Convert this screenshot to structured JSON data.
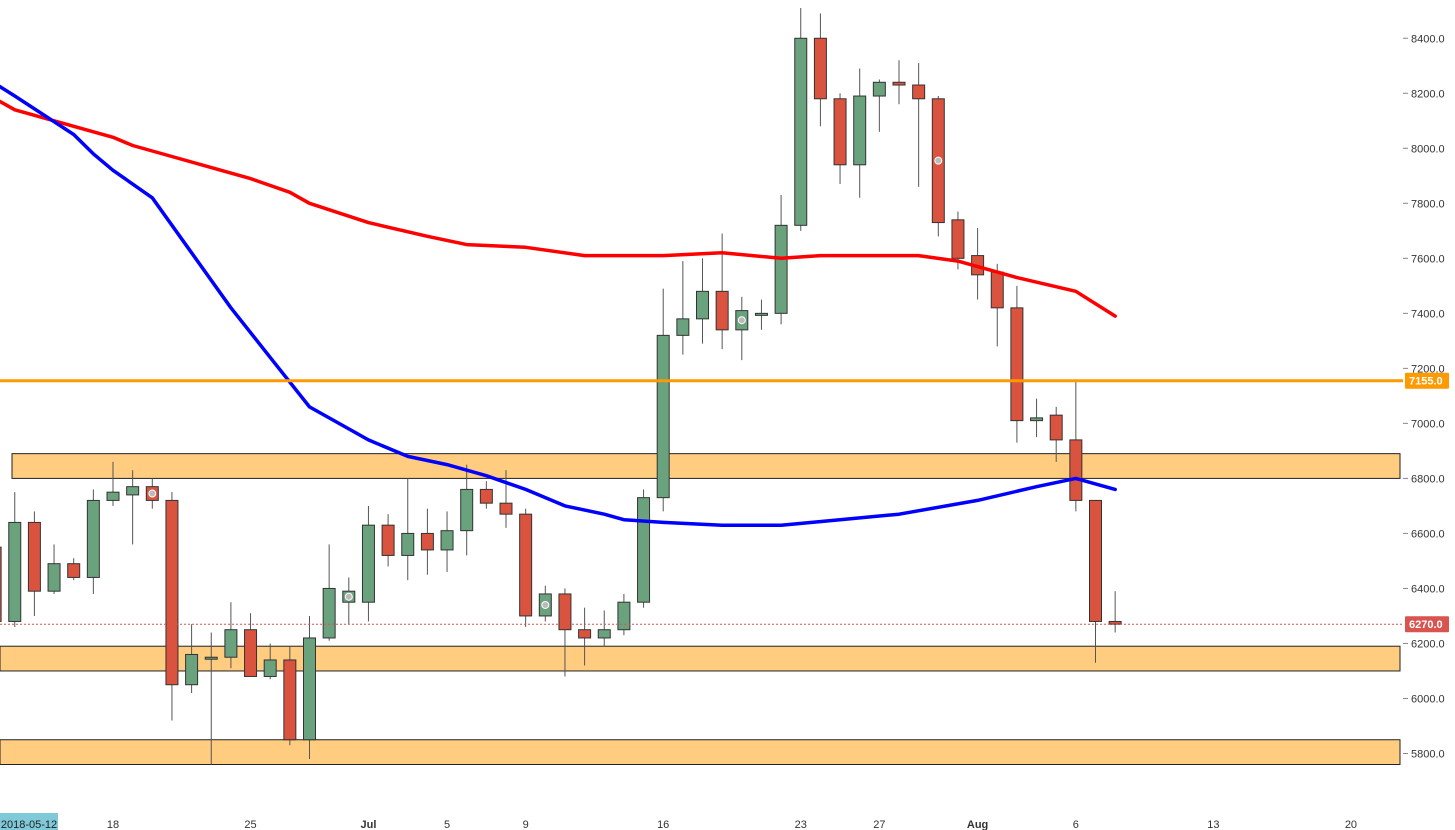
{
  "chart_data": {
    "type": "candlestick",
    "ylim": [
      5740,
      8510
    ],
    "y_ticks": [
      "5800.0",
      "6000.0",
      "6200.0",
      "6400.0",
      "6600.0",
      "6800.0",
      "7000.0",
      "7200.0",
      "7400.0",
      "7600.0",
      "7800.0",
      "8000.0",
      "8200.0",
      "8400.0"
    ],
    "x_tick_labels": [
      {
        "date": "2018-06-18",
        "label": "18"
      },
      {
        "date": "2018-06-25",
        "label": "25"
      },
      {
        "date": "2018-07-01",
        "label": "Jul"
      },
      {
        "date": "2018-07-05",
        "label": "5"
      },
      {
        "date": "2018-07-09",
        "label": "9"
      },
      {
        "date": "2018-07-16",
        "label": "16"
      },
      {
        "date": "2018-07-23",
        "label": "23"
      },
      {
        "date": "2018-07-27",
        "label": "27"
      },
      {
        "date": "2018-08-01",
        "label": "Aug"
      },
      {
        "date": "2018-08-06",
        "label": "6"
      },
      {
        "date": "2018-08-13",
        "label": "13"
      },
      {
        "date": "2018-08-20",
        "label": "20"
      }
    ],
    "date_label": "2018-05-12",
    "candles": [
      {
        "date": "2018-06-12",
        "o": 6550,
        "h": 6620,
        "l": 6110,
        "c": 6280
      },
      {
        "date": "2018-06-13",
        "o": 6280,
        "h": 6750,
        "l": 6260,
        "c": 6640
      },
      {
        "date": "2018-06-14",
        "o": 6640,
        "h": 6680,
        "l": 6300,
        "c": 6390
      },
      {
        "date": "2018-06-15",
        "o": 6390,
        "h": 6560,
        "l": 6380,
        "c": 6490
      },
      {
        "date": "2018-06-16",
        "o": 6490,
        "h": 6510,
        "l": 6430,
        "c": 6440
      },
      {
        "date": "2018-06-17",
        "o": 6440,
        "h": 6760,
        "l": 6380,
        "c": 6720
      },
      {
        "date": "2018-06-18",
        "o": 6720,
        "h": 6860,
        "l": 6700,
        "c": 6750
      },
      {
        "date": "2018-06-19",
        "o": 6740,
        "h": 6830,
        "l": 6560,
        "c": 6770
      },
      {
        "date": "2018-06-20",
        "o": 6770,
        "h": 6800,
        "l": 6690,
        "c": 6720,
        "marker": true
      },
      {
        "date": "2018-06-21",
        "o": 6720,
        "h": 6750,
        "l": 5920,
        "c": 6050
      },
      {
        "date": "2018-06-22",
        "o": 6050,
        "h": 6270,
        "l": 6020,
        "c": 6160
      },
      {
        "date": "2018-06-23",
        "o": 6150,
        "h": 6240,
        "l": 5760,
        "c": 6150
      },
      {
        "date": "2018-06-24",
        "o": 6150,
        "h": 6350,
        "l": 6110,
        "c": 6250
      },
      {
        "date": "2018-06-25",
        "o": 6250,
        "h": 6310,
        "l": 6080,
        "c": 6080
      },
      {
        "date": "2018-06-26",
        "o": 6080,
        "h": 6200,
        "l": 6070,
        "c": 6140
      },
      {
        "date": "2018-06-27",
        "o": 6140,
        "h": 6190,
        "l": 5830,
        "c": 5850
      },
      {
        "date": "2018-06-28",
        "o": 5850,
        "h": 6300,
        "l": 5780,
        "c": 6220
      },
      {
        "date": "2018-06-29",
        "o": 6220,
        "h": 6560,
        "l": 6210,
        "c": 6400
      },
      {
        "date": "2018-06-30",
        "o": 6350,
        "h": 6440,
        "l": 6270,
        "c": 6390,
        "marker": true
      },
      {
        "date": "2018-07-01",
        "o": 6350,
        "h": 6700,
        "l": 6280,
        "c": 6630
      },
      {
        "date": "2018-07-02",
        "o": 6630,
        "h": 6670,
        "l": 6480,
        "c": 6520
      },
      {
        "date": "2018-07-03",
        "o": 6520,
        "h": 6800,
        "l": 6430,
        "c": 6600
      },
      {
        "date": "2018-07-04",
        "o": 6600,
        "h": 6690,
        "l": 6450,
        "c": 6540
      },
      {
        "date": "2018-07-05",
        "o": 6540,
        "h": 6680,
        "l": 6460,
        "c": 6610
      },
      {
        "date": "2018-07-06",
        "o": 6610,
        "h": 6850,
        "l": 6520,
        "c": 6760
      },
      {
        "date": "2018-07-07",
        "o": 6760,
        "h": 6790,
        "l": 6690,
        "c": 6710
      },
      {
        "date": "2018-07-08",
        "o": 6710,
        "h": 6830,
        "l": 6620,
        "c": 6670
      },
      {
        "date": "2018-07-09",
        "o": 6670,
        "h": 6690,
        "l": 6260,
        "c": 6300
      },
      {
        "date": "2018-07-10",
        "o": 6300,
        "h": 6410,
        "l": 6280,
        "c": 6380,
        "marker": true
      },
      {
        "date": "2018-07-11",
        "o": 6380,
        "h": 6400,
        "l": 6080,
        "c": 6250
      },
      {
        "date": "2018-07-12",
        "o": 6250,
        "h": 6330,
        "l": 6120,
        "c": 6220
      },
      {
        "date": "2018-07-13",
        "o": 6220,
        "h": 6320,
        "l": 6190,
        "c": 6250
      },
      {
        "date": "2018-07-14",
        "o": 6250,
        "h": 6380,
        "l": 6230,
        "c": 6350
      },
      {
        "date": "2018-07-15",
        "o": 6350,
        "h": 6760,
        "l": 6330,
        "c": 6730
      },
      {
        "date": "2018-07-16",
        "o": 6730,
        "h": 7490,
        "l": 6680,
        "c": 7320
      },
      {
        "date": "2018-07-17",
        "o": 7320,
        "h": 7590,
        "l": 7250,
        "c": 7380
      },
      {
        "date": "2018-07-18",
        "o": 7380,
        "h": 7600,
        "l": 7290,
        "c": 7480
      },
      {
        "date": "2018-07-19",
        "o": 7480,
        "h": 7690,
        "l": 7270,
        "c": 7340
      },
      {
        "date": "2018-07-20",
        "o": 7340,
        "h": 7460,
        "l": 7230,
        "c": 7410,
        "marker": true
      },
      {
        "date": "2018-07-21",
        "o": 7400,
        "h": 7450,
        "l": 7340,
        "c": 7400
      },
      {
        "date": "2018-07-22",
        "o": 7400,
        "h": 7830,
        "l": 7360,
        "c": 7720
      },
      {
        "date": "2018-07-23",
        "o": 7720,
        "h": 8510,
        "l": 7700,
        "c": 8400
      },
      {
        "date": "2018-07-24",
        "o": 8400,
        "h": 8490,
        "l": 8080,
        "c": 8180
      },
      {
        "date": "2018-07-25",
        "o": 8180,
        "h": 8200,
        "l": 7870,
        "c": 7940
      },
      {
        "date": "2018-07-26",
        "o": 7940,
        "h": 8290,
        "l": 7820,
        "c": 8190
      },
      {
        "date": "2018-07-27",
        "o": 8190,
        "h": 8250,
        "l": 8060,
        "c": 8240
      },
      {
        "date": "2018-07-28",
        "o": 8240,
        "h": 8320,
        "l": 8160,
        "c": 8230
      },
      {
        "date": "2018-07-29",
        "o": 8230,
        "h": 8310,
        "l": 7860,
        "c": 8180
      },
      {
        "date": "2018-07-30",
        "o": 8180,
        "h": 8190,
        "l": 7680,
        "c": 7730,
        "marker": true
      },
      {
        "date": "2018-07-31",
        "o": 7740,
        "h": 7770,
        "l": 7560,
        "c": 7600
      },
      {
        "date": "2018-08-01",
        "o": 7610,
        "h": 7710,
        "l": 7450,
        "c": 7540
      },
      {
        "date": "2018-08-02",
        "o": 7550,
        "h": 7580,
        "l": 7280,
        "c": 7420
      },
      {
        "date": "2018-08-03",
        "o": 7420,
        "h": 7500,
        "l": 6930,
        "c": 7010
      },
      {
        "date": "2018-08-04",
        "o": 7010,
        "h": 7090,
        "l": 6950,
        "c": 7020
      },
      {
        "date": "2018-08-05",
        "o": 7030,
        "h": 7060,
        "l": 6860,
        "c": 6940
      },
      {
        "date": "2018-08-06",
        "o": 6940,
        "h": 7160,
        "l": 6680,
        "c": 6720
      },
      {
        "date": "2018-08-07",
        "o": 6720,
        "h": 6720,
        "l": 6130,
        "c": 6280
      },
      {
        "date": "2018-08-08",
        "o": 6280,
        "h": 6390,
        "l": 6240,
        "c": 6270
      }
    ],
    "moving_averages": [
      {
        "color": "#ff0000",
        "points": [
          [
            "2018-06-11",
            8220
          ],
          [
            "2018-06-13",
            8140
          ],
          [
            "2018-06-16",
            8080
          ],
          [
            "2018-06-18",
            8040
          ],
          [
            "2018-06-19",
            8010
          ],
          [
            "2018-06-21",
            7970
          ],
          [
            "2018-06-23",
            7930
          ],
          [
            "2018-06-25",
            7890
          ],
          [
            "2018-06-27",
            7840
          ],
          [
            "2018-06-28",
            7800
          ],
          [
            "2018-07-01",
            7730
          ],
          [
            "2018-07-04",
            7680
          ],
          [
            "2018-07-06",
            7650
          ],
          [
            "2018-07-09",
            7640
          ],
          [
            "2018-07-12",
            7610
          ],
          [
            "2018-07-16",
            7610
          ],
          [
            "2018-07-19",
            7620
          ],
          [
            "2018-07-22",
            7600
          ],
          [
            "2018-07-24",
            7610
          ],
          [
            "2018-07-29",
            7610
          ],
          [
            "2018-07-31",
            7590
          ],
          [
            "2018-08-01",
            7570
          ],
          [
            "2018-08-03",
            7530
          ],
          [
            "2018-08-06",
            7480
          ],
          [
            "2018-08-08",
            7390
          ]
        ]
      },
      {
        "color": "#0000ff",
        "points": [
          [
            "2018-06-11",
            8280
          ],
          [
            "2018-06-13",
            8190
          ],
          [
            "2018-06-16",
            8050
          ],
          [
            "2018-06-17",
            7980
          ],
          [
            "2018-06-18",
            7920
          ],
          [
            "2018-06-20",
            7820
          ],
          [
            "2018-06-22",
            7620
          ],
          [
            "2018-06-24",
            7420
          ],
          [
            "2018-06-26",
            7240
          ],
          [
            "2018-06-28",
            7060
          ],
          [
            "2018-06-30",
            6980
          ],
          [
            "2018-07-01",
            6940
          ],
          [
            "2018-07-03",
            6880
          ],
          [
            "2018-07-05",
            6850
          ],
          [
            "2018-07-07",
            6810
          ],
          [
            "2018-07-09",
            6760
          ],
          [
            "2018-07-11",
            6700
          ],
          [
            "2018-07-13",
            6670
          ],
          [
            "2018-07-14",
            6650
          ],
          [
            "2018-07-16",
            6640
          ],
          [
            "2018-07-19",
            6630
          ],
          [
            "2018-07-22",
            6630
          ],
          [
            "2018-07-25",
            6650
          ],
          [
            "2018-07-28",
            6670
          ],
          [
            "2018-08-01",
            6720
          ],
          [
            "2018-08-04",
            6770
          ],
          [
            "2018-08-06",
            6800
          ],
          [
            "2018-08-08",
            6760
          ]
        ]
      }
    ],
    "zones": [
      {
        "top": 6890,
        "bottom": 6800,
        "color": "#ffcc80"
      },
      {
        "top": 6190,
        "bottom": 6100,
        "color": "#ffcc80"
      },
      {
        "top": 5850,
        "bottom": 5760,
        "color": "#ffcc80"
      }
    ],
    "horizontal_line": {
      "value": 7155.0,
      "label": "7155.0",
      "color": "#ff9900"
    },
    "price_line": {
      "value": 6270.0,
      "label": "6270.0",
      "color": "#d9534f"
    },
    "colors": {
      "up": "#6aa27e",
      "down": "#d9533f",
      "wick": "#555555",
      "marker": "#bbbbbb"
    }
  }
}
